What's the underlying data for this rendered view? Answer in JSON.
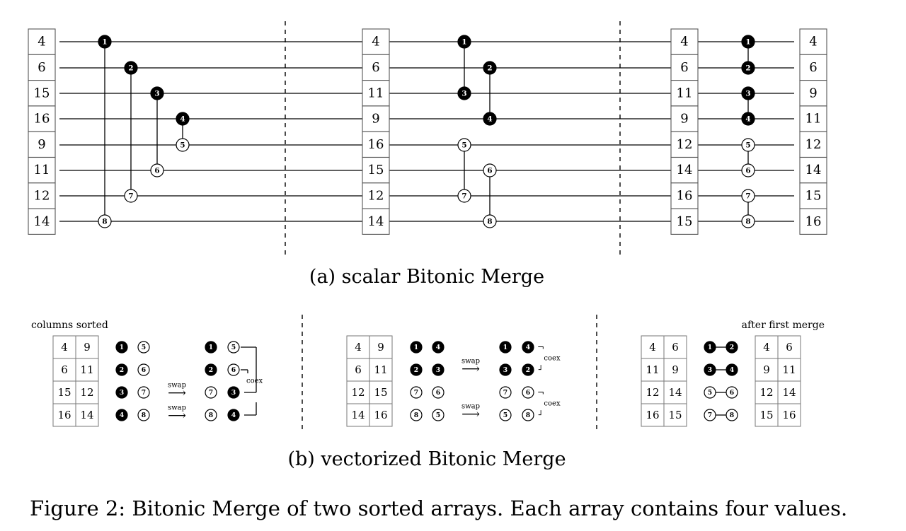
{
  "scalar": {
    "input_values": [
      "4",
      "6",
      "15",
      "16",
      "9",
      "11",
      "12",
      "14"
    ],
    "mid_values": [
      "4",
      "6",
      "11",
      "9",
      "16",
      "15",
      "12",
      "14"
    ],
    "pre_final_values": [
      "4",
      "6",
      "11",
      "9",
      "12",
      "14",
      "16",
      "15"
    ],
    "output_values": [
      "4",
      "6",
      "9",
      "11",
      "12",
      "14",
      "15",
      "16"
    ],
    "stage1_comparators": [
      {
        "label": "1",
        "from": 0,
        "to": 7
      },
      {
        "label": "2",
        "from": 1,
        "to": 6
      },
      {
        "label": "3",
        "from": 2,
        "to": 5
      },
      {
        "label": "4",
        "from": 3,
        "to": 4
      }
    ],
    "stage2_comparators": [
      {
        "label": "1",
        "from": 0,
        "to": 2
      },
      {
        "label": "2",
        "from": 1,
        "to": 3
      },
      {
        "label": "5",
        "from": 4,
        "to": 6
      },
      {
        "label": "6",
        "from": 5,
        "to": 7
      }
    ],
    "stage3_comparators": [
      {
        "label": "1",
        "from": 0,
        "to": 1
      },
      {
        "label": "3",
        "from": 2,
        "to": 3
      },
      {
        "label": "5",
        "from": 4,
        "to": 5
      },
      {
        "label": "7",
        "from": 6,
        "to": 7
      }
    ],
    "caption": "(a) scalar Bitonic Merge"
  },
  "vectorized": {
    "panel1": {
      "label": "columns sorted",
      "grid": [
        [
          "4",
          "9"
        ],
        [
          "6",
          "11"
        ],
        [
          "15",
          "12"
        ],
        [
          "16",
          "14"
        ]
      ],
      "pairs": [
        [
          "1",
          "5"
        ],
        [
          "2",
          "6"
        ],
        [
          "3",
          "7"
        ],
        [
          "4",
          "8"
        ]
      ],
      "swap_label": "swap",
      "result_pairs": [
        [
          "1",
          "5"
        ],
        [
          "2",
          "6"
        ],
        [
          "7",
          "3"
        ],
        [
          "8",
          "4"
        ]
      ],
      "coex_label": "coex"
    },
    "panel2": {
      "grid": [
        [
          "4",
          "9"
        ],
        [
          "6",
          "11"
        ],
        [
          "12",
          "15"
        ],
        [
          "14",
          "16"
        ]
      ],
      "pairs": [
        [
          "1",
          "4"
        ],
        [
          "2",
          "3"
        ],
        [
          "7",
          "6"
        ],
        [
          "8",
          "5"
        ]
      ],
      "swap_label": "swap",
      "result_pairs": [
        [
          "1",
          "4"
        ],
        [
          "3",
          "2"
        ],
        [
          "7",
          "6"
        ],
        [
          "5",
          "8"
        ]
      ],
      "coex_label": "coex"
    },
    "panel3": {
      "label": "after first merge",
      "grid": [
        [
          "4",
          "6"
        ],
        [
          "11",
          "9"
        ],
        [
          "12",
          "14"
        ],
        [
          "16",
          "15"
        ]
      ],
      "pairs": [
        [
          "1",
          "2"
        ],
        [
          "3",
          "4"
        ],
        [
          "5",
          "6"
        ],
        [
          "7",
          "8"
        ]
      ],
      "result_grid": [
        [
          "4",
          "6"
        ],
        [
          "9",
          "11"
        ],
        [
          "12",
          "14"
        ],
        [
          "15",
          "16"
        ]
      ]
    },
    "caption": "(b) vectorized Bitonic Merge"
  },
  "figure_caption": "Figure 2: Bitonic Merge of two sorted arrays. Each array contains four values."
}
